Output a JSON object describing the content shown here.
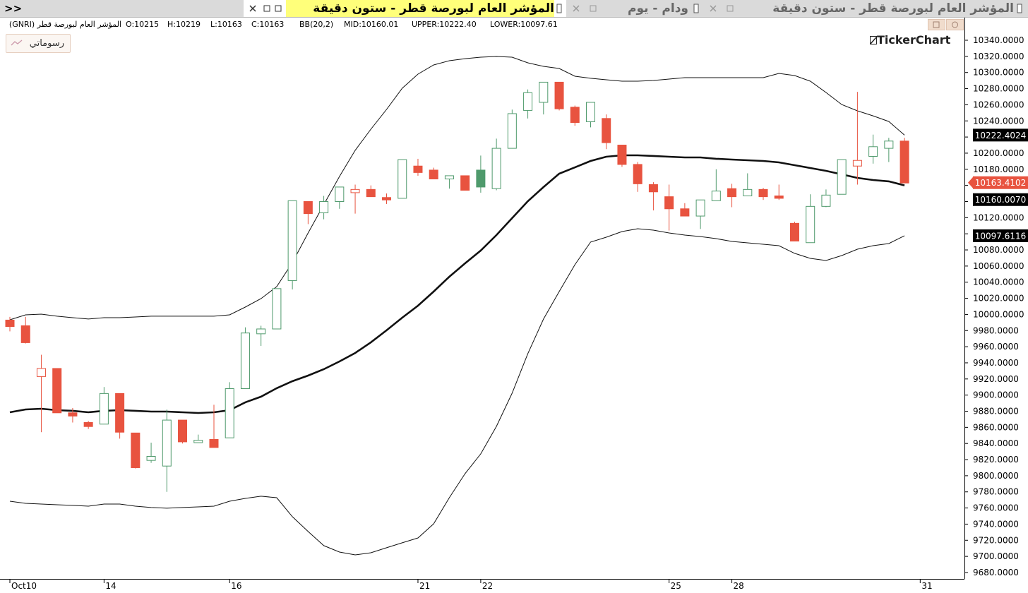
{
  "tabs": {
    "menu": ">>",
    "items": [
      "المؤشر العام لبورصة قطر - ستون دقيقة",
      "ودام - يوم",
      "المؤشر العام لبورصة قطر - ستون دقيقة"
    ]
  },
  "info": {
    "name": "المؤشر العام لبورصة قطر (GNRI)",
    "open": "O:10215",
    "high": "H:10219",
    "low": "L:10163",
    "close": "C:10163",
    "indicator": "BB(20,2)",
    "mid": "MID:10160.01",
    "upper": "UPPER:10222.40",
    "lower": "LOWER:10097.61"
  },
  "drawings_button": "رسوماتي",
  "logo": "TickerChart",
  "chart_data": {
    "type": "candlestick",
    "up_color": "#4f9a6c",
    "down_color": "#e8533f",
    "grid": false,
    "open": [
      9993,
      9986,
      9923,
      9933,
      9878,
      9866,
      9864,
      9902,
      9853,
      9819,
      9812,
      9869,
      9841,
      9845,
      9847,
      9908,
      9976,
      9982,
      10042,
      10140,
      10126,
      10140,
      10151,
      10155,
      10145,
      10144,
      10184,
      10179,
      10168,
      10172,
      10179,
      10156,
      10206,
      10253,
      10263,
      10288,
      10257,
      10239,
      10243,
      10210,
      10186,
      10161,
      10146,
      10131,
      10122,
      10141,
      10156,
      10147,
      10155,
      10147,
      10113,
      10089,
      10134,
      10149,
      10184,
      10196,
      10206,
      10215
    ],
    "high": [
      9997,
      9997,
      9950,
      9933,
      9884,
      9868,
      9910,
      9902,
      9853,
      9841,
      9882,
      9869,
      9851,
      9888,
      9916,
      9984,
      9986,
      10032,
      10141,
      10140,
      10147,
      10158,
      10161,
      10160,
      10150,
      10192,
      10193,
      10182,
      10172,
      10172,
      10197,
      10218,
      10254,
      10279,
      10288,
      10288,
      10259,
      10263,
      10248,
      10210,
      10189,
      10164,
      10161,
      10138,
      10142,
      10180,
      10162,
      10175,
      10157,
      10161,
      10115,
      10149,
      10155,
      10192,
      10276,
      10223,
      10219,
      10219
    ],
    "low": [
      9979,
      9964,
      9854,
      9878,
      9866,
      9858,
      9864,
      9846,
      9809,
      9816,
      9780,
      9840,
      9841,
      9835,
      9847,
      9908,
      9961,
      9982,
      10031,
      10112,
      10118,
      10131,
      10125,
      10146,
      10137,
      10144,
      10172,
      10168,
      10156,
      10154,
      10151,
      10154,
      10206,
      10243,
      10248,
      10253,
      10234,
      10232,
      10205,
      10183,
      10152,
      10129,
      10104,
      10122,
      10106,
      10141,
      10133,
      10147,
      10142,
      10142,
      10091,
      10089,
      10133,
      10149,
      10161,
      10187,
      10189,
      10163
    ],
    "close": [
      9985,
      9965,
      9933,
      9878,
      9874,
      9861,
      9902,
      9854,
      9810,
      9824,
      9869,
      9842,
      9844,
      9835,
      9908,
      9977,
      9982,
      10032,
      10141,
      10125,
      10140,
      10158,
      10155,
      10146,
      10142,
      10192,
      10176,
      10168,
      10172,
      10154,
      10158,
      10206,
      10249,
      10275,
      10288,
      10255,
      10238,
      10263,
      10213,
      10186,
      10162,
      10152,
      10131,
      10122,
      10142,
      10153,
      10146,
      10155,
      10146,
      10144,
      10091,
      10134,
      10148,
      10192,
      10191,
      10208,
      10215,
      10163
    ],
    "bands": {
      "color": "#111",
      "upper": [
        9993.4,
        9999.5,
        10000.4,
        9997.8,
        9996,
        9994.3,
        9996,
        9996,
        9996.9,
        9997.8,
        9997.8,
        9997.8,
        9997.8,
        9997.8,
        9999.5,
        10009.1,
        10019.6,
        10034.5,
        10064.3,
        10101,
        10136.1,
        10171.1,
        10203.5,
        10229.7,
        10254.2,
        10280.5,
        10298,
        10309.4,
        10314.6,
        10317.2,
        10319,
        10319.9,
        10319,
        10312,
        10307.6,
        10305,
        10295.4,
        10292.8,
        10291,
        10289.2,
        10289.2,
        10290.1,
        10291.9,
        10293.6,
        10293.6,
        10293.6,
        10293.6,
        10293.6,
        10293.6,
        10298.9,
        10296.2,
        10289.2,
        10275.2,
        10260.3,
        10252.5,
        10246.3,
        10239.3,
        10222.4
      ],
      "mid": [
        9878.7,
        9882.2,
        9883.1,
        9881.3,
        9880.5,
        9878.7,
        9880.5,
        9881.3,
        9880.5,
        9879.6,
        9879.6,
        9878.7,
        9877.8,
        9878.7,
        9881.3,
        9891,
        9898,
        9908.5,
        9917.2,
        9924.2,
        9932.1,
        9941.7,
        9952.2,
        9965.4,
        9980.3,
        9996,
        10010.9,
        10028.4,
        10046.8,
        10063.4,
        10079.2,
        10098.4,
        10119.4,
        10140.4,
        10157.9,
        10174.6,
        10182.4,
        10190.3,
        10195.6,
        10197.3,
        10197.3,
        10196.5,
        10195.6,
        10194.7,
        10194.7,
        10193,
        10192.1,
        10191.2,
        10190.3,
        10188.6,
        10185.1,
        10181.6,
        10178.1,
        10173.7,
        10169.3,
        10166.7,
        10165,
        10160.01
      ],
      "lower": [
        9768.4,
        9765.8,
        9764.9,
        9764,
        9763.2,
        9762.3,
        9764.9,
        9764.9,
        9762.3,
        9760.6,
        9759.7,
        9760.6,
        9761.4,
        9762.3,
        9768.4,
        9771.9,
        9774.6,
        9772.8,
        9749.2,
        9730.8,
        9713.3,
        9705.4,
        9701.9,
        9704.5,
        9710.7,
        9716.8,
        9722.9,
        9740.4,
        9772.8,
        9802.6,
        9827.1,
        9861.2,
        9902.3,
        9951.4,
        9994.3,
        10028.4,
        10061.7,
        10089.7,
        10095.8,
        10102.8,
        10106.3,
        10104.5,
        10101,
        10098.4,
        10096.6,
        10094,
        10090.5,
        10088.8,
        10087,
        10085.3,
        10075.7,
        10069.5,
        10066.9,
        10073,
        10080.9,
        10085.3,
        10087.9,
        10097.61
      ]
    },
    "xlim": [
      -0.63,
      60.82
    ],
    "xticks": [
      {
        "value": 0,
        "label": "Oct10"
      },
      {
        "value": 6,
        "label": "14"
      },
      {
        "value": 14,
        "label": "16"
      },
      {
        "value": 26,
        "label": "21"
      },
      {
        "value": 30,
        "label": "22"
      },
      {
        "value": 42,
        "label": "25"
      },
      {
        "value": 46,
        "label": "28"
      },
      {
        "value": 58,
        "label": "31"
      }
    ],
    "ylim": [
      9672.1,
      10368.9
    ],
    "yticks": [
      {
        "value": 9680,
        "label": "9680.0000"
      },
      {
        "value": 9700,
        "label": "9700.0000"
      },
      {
        "value": 9720,
        "label": "9720.0000"
      },
      {
        "value": 9740,
        "label": "9740.0000"
      },
      {
        "value": 9760,
        "label": "9760.0000"
      },
      {
        "value": 9780,
        "label": "9780.0000"
      },
      {
        "value": 9800,
        "label": "9800.0000"
      },
      {
        "value": 9820,
        "label": "9820.0000"
      },
      {
        "value": 9840,
        "label": "9840.0000"
      },
      {
        "value": 9860,
        "label": "9860.0000"
      },
      {
        "value": 9880,
        "label": "9880.0000"
      },
      {
        "value": 9900,
        "label": "9900.0000"
      },
      {
        "value": 9920,
        "label": "9920.0000"
      },
      {
        "value": 9940,
        "label": "9940.0000"
      },
      {
        "value": 9960,
        "label": "9960.0000"
      },
      {
        "value": 9980,
        "label": "9980.0000"
      },
      {
        "value": 10000,
        "label": "10000.0000"
      },
      {
        "value": 10020,
        "label": "10020.0000"
      },
      {
        "value": 10040,
        "label": "10040.0000"
      },
      {
        "value": 10060,
        "label": "10060.0000"
      },
      {
        "value": 10080,
        "label": "10080.0000"
      },
      {
        "value": 10100,
        "label": "10100.0000"
      },
      {
        "value": 10120,
        "label": "10120.0000"
      },
      {
        "value": 10140,
        "label": "10140.0000"
      },
      {
        "value": 10160,
        "label": "10160.0000"
      },
      {
        "value": 10180,
        "label": "10180.0000"
      },
      {
        "value": 10200,
        "label": "10200.0000"
      },
      {
        "value": 10220,
        "label": "10220.0000"
      },
      {
        "value": 10240,
        "label": "10240.0000"
      },
      {
        "value": 10260,
        "label": "10260.0000"
      },
      {
        "value": 10280,
        "label": "10280.0000"
      },
      {
        "value": 10300,
        "label": "10300.0000"
      },
      {
        "value": 10320,
        "label": "10320.0000"
      },
      {
        "value": 10340,
        "label": "10340.0000"
      }
    ],
    "price_tags": [
      {
        "value": 10222.4024,
        "label": "10222.4024",
        "color": "#000000"
      },
      {
        "value": 10163.4102,
        "label": "10163.4102",
        "color": "#e8533f"
      },
      {
        "value": 10160.007,
        "label": "10160.0070",
        "color": "#000000"
      },
      {
        "value": 10097.6116,
        "label": "10097.6116",
        "color": "#000000"
      }
    ]
  }
}
